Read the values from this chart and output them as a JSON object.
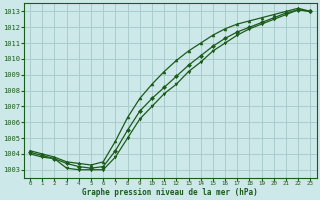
{
  "title": "Graphe pression niveau de la mer (hPa)",
  "bg_color": "#cde8e8",
  "grid_color": "#aacccc",
  "line_color": "#1a5c1a",
  "xlim": [
    -0.5,
    23.5
  ],
  "ylim": [
    1002.5,
    1013.5
  ],
  "yticks": [
    1003,
    1004,
    1005,
    1006,
    1007,
    1008,
    1009,
    1010,
    1011,
    1012,
    1013
  ],
  "xticks": [
    0,
    1,
    2,
    3,
    4,
    5,
    6,
    7,
    8,
    9,
    10,
    11,
    12,
    13,
    14,
    15,
    16,
    17,
    18,
    19,
    20,
    21,
    22,
    23
  ],
  "series1_x": [
    0,
    1,
    2,
    3,
    4,
    5,
    6,
    7,
    8,
    9,
    10,
    11,
    12,
    13,
    14,
    15,
    16,
    17,
    18,
    19,
    20,
    21,
    22,
    23
  ],
  "series1_y": [
    1004.0,
    1003.8,
    1003.7,
    1003.1,
    1003.0,
    1003.0,
    1003.0,
    1003.8,
    1005.0,
    1006.2,
    1007.0,
    1007.8,
    1008.4,
    1009.2,
    1009.8,
    1010.5,
    1011.0,
    1011.5,
    1011.9,
    1012.2,
    1012.5,
    1012.8,
    1013.1,
    1013.0
  ],
  "series2_x": [
    0,
    1,
    2,
    3,
    4,
    5,
    6,
    7,
    8,
    9,
    10,
    11,
    12,
    13,
    14,
    15,
    16,
    17,
    18,
    19,
    20,
    21,
    22,
    23
  ],
  "series2_y": [
    1004.1,
    1003.9,
    1003.7,
    1003.4,
    1003.2,
    1003.1,
    1003.2,
    1004.2,
    1005.5,
    1006.7,
    1007.5,
    1008.2,
    1008.9,
    1009.6,
    1010.2,
    1010.8,
    1011.3,
    1011.7,
    1012.0,
    1012.3,
    1012.6,
    1012.9,
    1013.1,
    1013.0
  ],
  "series3_x": [
    0,
    1,
    2,
    3,
    4,
    5,
    6,
    7,
    8,
    9,
    10,
    11,
    12,
    13,
    14,
    15,
    16,
    17,
    18,
    19,
    20,
    21,
    22,
    23
  ],
  "series3_y": [
    1004.2,
    1004.0,
    1003.8,
    1003.5,
    1003.4,
    1003.3,
    1003.5,
    1004.8,
    1006.3,
    1007.5,
    1008.4,
    1009.2,
    1009.9,
    1010.5,
    1011.0,
    1011.5,
    1011.9,
    1012.2,
    1012.4,
    1012.6,
    1012.8,
    1013.0,
    1013.2,
    1013.0
  ]
}
